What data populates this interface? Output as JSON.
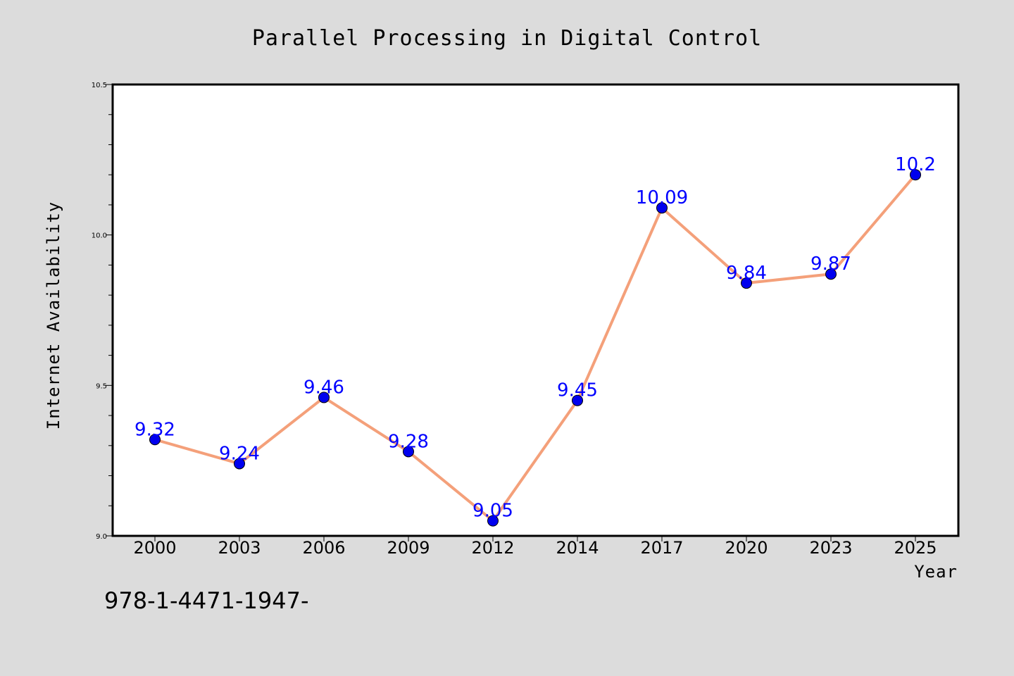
{
  "chart_data": {
    "type": "line",
    "title": "Parallel Processing in Digital Control",
    "xlabel": "Year",
    "ylabel": "Internet Availability",
    "categories": [
      "2000",
      "2003",
      "2006",
      "2009",
      "2012",
      "2014",
      "2017",
      "2020",
      "2023",
      "2025"
    ],
    "series": [
      {
        "values": [
          9.32,
          9.24,
          9.46,
          9.28,
          9.05,
          9.45,
          10.09,
          9.84,
          9.87,
          10.2
        ],
        "labels": [
          "9.32",
          "9.24",
          "9.46",
          "9.28",
          "9.05",
          "9.45",
          "10.09",
          "9.84",
          "9.87",
          "10.2"
        ]
      }
    ],
    "ylim": [
      9.0,
      10.5
    ],
    "yticks": [
      9.0,
      9.5,
      10.0,
      10.5
    ],
    "ytick_labels": [
      "9.0",
      "9.5",
      "10.0",
      "10.5"
    ],
    "grid": false,
    "colors": {
      "background": "#dcdcdc",
      "plot_background": "#ffffff",
      "line": "#f4a07a",
      "marker": "#0000ee",
      "data_label": "#0000ff"
    }
  },
  "footer": {
    "text": "978-1-4471-1947-"
  }
}
